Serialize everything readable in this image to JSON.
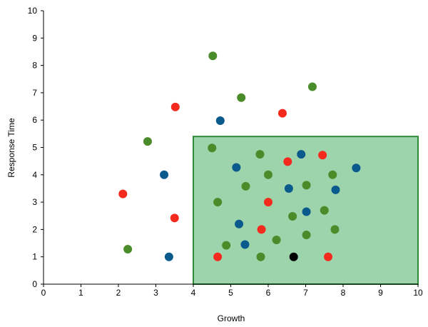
{
  "chart_data": {
    "type": "scatter",
    "title": "",
    "xlabel": "Growth",
    "ylabel": "Response Time",
    "xlim": [
      0,
      10
    ],
    "ylim": [
      0,
      10
    ],
    "xticks": [
      "0",
      "1",
      "2",
      "3",
      "4",
      "5",
      "6",
      "7",
      "8",
      "9",
      "10"
    ],
    "yticks": [
      "0",
      "1",
      "2",
      "3",
      "4",
      "5",
      "6",
      "7",
      "8",
      "9",
      "10"
    ],
    "grid": false,
    "colors": {
      "green": "#4a8c2a",
      "red": "#f52a1e",
      "blue": "#0b5a8e",
      "black": "#000000",
      "region_fill": "#9ed4ab",
      "region_stroke": "#2e8b3a"
    },
    "highlight_region": {
      "x": [
        4,
        10
      ],
      "y": [
        0,
        5.4
      ]
    },
    "points": [
      {
        "x": 4.52,
        "y": 8.35,
        "color": "green"
      },
      {
        "x": 7.18,
        "y": 7.22,
        "color": "green"
      },
      {
        "x": 5.28,
        "y": 6.82,
        "color": "green"
      },
      {
        "x": 3.52,
        "y": 6.48,
        "color": "red"
      },
      {
        "x": 6.38,
        "y": 6.25,
        "color": "red"
      },
      {
        "x": 4.72,
        "y": 5.98,
        "color": "blue"
      },
      {
        "x": 2.78,
        "y": 5.22,
        "color": "green"
      },
      {
        "x": 4.5,
        "y": 4.98,
        "color": "green"
      },
      {
        "x": 5.78,
        "y": 4.75,
        "color": "green"
      },
      {
        "x": 6.88,
        "y": 4.75,
        "color": "blue"
      },
      {
        "x": 7.45,
        "y": 4.72,
        "color": "red"
      },
      {
        "x": 6.52,
        "y": 4.48,
        "color": "red"
      },
      {
        "x": 5.15,
        "y": 4.27,
        "color": "blue"
      },
      {
        "x": 8.35,
        "y": 4.25,
        "color": "blue"
      },
      {
        "x": 3.22,
        "y": 4.0,
        "color": "blue"
      },
      {
        "x": 6.0,
        "y": 4.0,
        "color": "green"
      },
      {
        "x": 7.72,
        "y": 4.0,
        "color": "green"
      },
      {
        "x": 5.4,
        "y": 3.58,
        "color": "green"
      },
      {
        "x": 7.02,
        "y": 3.62,
        "color": "green"
      },
      {
        "x": 6.55,
        "y": 3.5,
        "color": "blue"
      },
      {
        "x": 7.8,
        "y": 3.45,
        "color": "blue"
      },
      {
        "x": 2.12,
        "y": 3.3,
        "color": "red"
      },
      {
        "x": 4.65,
        "y": 3.0,
        "color": "green"
      },
      {
        "x": 6.0,
        "y": 3.0,
        "color": "red"
      },
      {
        "x": 7.5,
        "y": 2.7,
        "color": "green"
      },
      {
        "x": 7.02,
        "y": 2.65,
        "color": "blue"
      },
      {
        "x": 6.65,
        "y": 2.48,
        "color": "green"
      },
      {
        "x": 3.5,
        "y": 2.42,
        "color": "red"
      },
      {
        "x": 5.22,
        "y": 2.2,
        "color": "blue"
      },
      {
        "x": 5.82,
        "y": 2.0,
        "color": "red"
      },
      {
        "x": 7.78,
        "y": 2.0,
        "color": "green"
      },
      {
        "x": 7.02,
        "y": 1.8,
        "color": "green"
      },
      {
        "x": 6.22,
        "y": 1.62,
        "color": "green"
      },
      {
        "x": 4.88,
        "y": 1.42,
        "color": "green"
      },
      {
        "x": 5.38,
        "y": 1.45,
        "color": "blue"
      },
      {
        "x": 2.25,
        "y": 1.28,
        "color": "green"
      },
      {
        "x": 3.35,
        "y": 1.0,
        "color": "blue"
      },
      {
        "x": 4.65,
        "y": 1.0,
        "color": "red"
      },
      {
        "x": 5.8,
        "y": 1.0,
        "color": "green"
      },
      {
        "x": 6.68,
        "y": 1.0,
        "color": "black"
      },
      {
        "x": 7.6,
        "y": 1.0,
        "color": "red"
      }
    ]
  }
}
